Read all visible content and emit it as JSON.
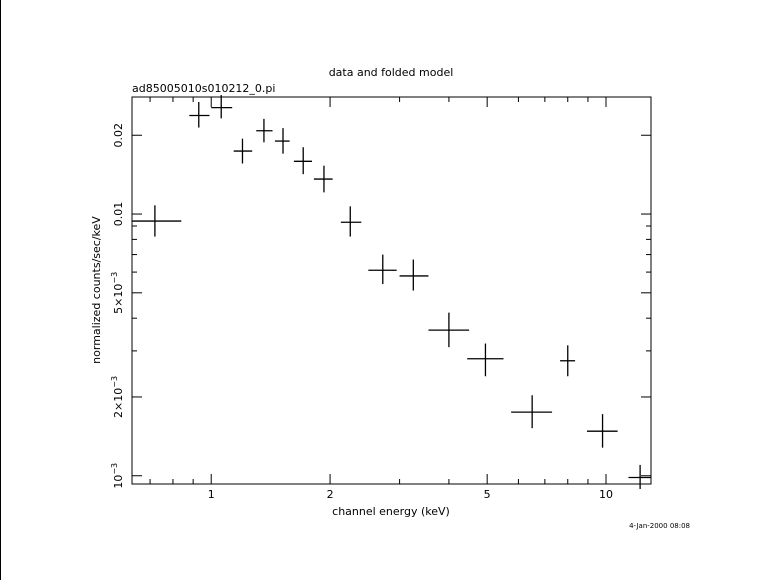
{
  "chart_data": {
    "type": "scatter",
    "title": "data and folded model",
    "subtitle": "ad85005010s010212_0.pi",
    "xlabel": "channel energy (keV)",
    "ylabel": "normalized counts/sec/keV",
    "timestamp": "4-Jan-2000 08:08",
    "x_scale": "log",
    "y_scale": "log",
    "xlim": [
      0.63,
      13.0
    ],
    "ylim": [
      0.00093,
      0.028
    ],
    "x_ticks": [
      {
        "value": 1,
        "label": "1"
      },
      {
        "value": 2,
        "label": "2"
      },
      {
        "value": 5,
        "label": "5"
      },
      {
        "value": 10,
        "label": "10"
      }
    ],
    "y_ticks": [
      {
        "value": 0.001,
        "label": "10",
        "sup": "−3"
      },
      {
        "value": 0.002,
        "label": "2×10",
        "sup": "−3"
      },
      {
        "value": 0.005,
        "label": "5×10",
        "sup": "−3"
      },
      {
        "value": 0.01,
        "label": "0.01",
        "sup": ""
      },
      {
        "value": 0.02,
        "label": "0.02",
        "sup": ""
      }
    ],
    "grid": false,
    "points": [
      {
        "x": 0.72,
        "xlo": 0.63,
        "xhi": 0.84,
        "y": 0.0094,
        "ylo": 0.0082,
        "yhi": 0.0108
      },
      {
        "x": 0.93,
        "xlo": 0.88,
        "xhi": 0.99,
        "y": 0.0238,
        "ylo": 0.0214,
        "yhi": 0.0268
      },
      {
        "x": 1.06,
        "xlo": 1.0,
        "xhi": 1.13,
        "y": 0.0255,
        "ylo": 0.0232,
        "yhi": 0.0285
      },
      {
        "x": 1.2,
        "xlo": 1.14,
        "xhi": 1.27,
        "y": 0.0174,
        "ylo": 0.0156,
        "yhi": 0.0194
      },
      {
        "x": 1.36,
        "xlo": 1.3,
        "xhi": 1.43,
        "y": 0.0208,
        "ylo": 0.0188,
        "yhi": 0.0231
      },
      {
        "x": 1.52,
        "xlo": 1.45,
        "xhi": 1.58,
        "y": 0.019,
        "ylo": 0.017,
        "yhi": 0.0213
      },
      {
        "x": 1.71,
        "xlo": 1.62,
        "xhi": 1.8,
        "y": 0.0159,
        "ylo": 0.0142,
        "yhi": 0.018
      },
      {
        "x": 1.93,
        "xlo": 1.82,
        "xhi": 2.03,
        "y": 0.0136,
        "ylo": 0.0121,
        "yhi": 0.0153
      },
      {
        "x": 2.25,
        "xlo": 2.13,
        "xhi": 2.4,
        "y": 0.0093,
        "ylo": 0.0082,
        "yhi": 0.0107
      },
      {
        "x": 2.72,
        "xlo": 2.5,
        "xhi": 2.95,
        "y": 0.0061,
        "ylo": 0.0054,
        "yhi": 0.007
      },
      {
        "x": 3.25,
        "xlo": 3.0,
        "xhi": 3.55,
        "y": 0.0058,
        "ylo": 0.0051,
        "yhi": 0.0067
      },
      {
        "x": 4.0,
        "xlo": 3.55,
        "xhi": 4.5,
        "y": 0.0036,
        "ylo": 0.0031,
        "yhi": 0.0042
      },
      {
        "x": 4.95,
        "xlo": 4.45,
        "xhi": 5.5,
        "y": 0.0028,
        "ylo": 0.0024,
        "yhi": 0.0032
      },
      {
        "x": 6.5,
        "xlo": 5.75,
        "xhi": 7.3,
        "y": 0.00175,
        "ylo": 0.00152,
        "yhi": 0.00203
      },
      {
        "x": 8.0,
        "xlo": 7.65,
        "xhi": 8.35,
        "y": 0.00275,
        "ylo": 0.0024,
        "yhi": 0.00315
      },
      {
        "x": 9.8,
        "xlo": 8.95,
        "xhi": 10.7,
        "y": 0.00148,
        "ylo": 0.00128,
        "yhi": 0.00172
      },
      {
        "x": 12.2,
        "xlo": 11.4,
        "xhi": 13.0,
        "y": 0.000985,
        "ylo": 0.00089,
        "yhi": 0.0011
      }
    ]
  }
}
